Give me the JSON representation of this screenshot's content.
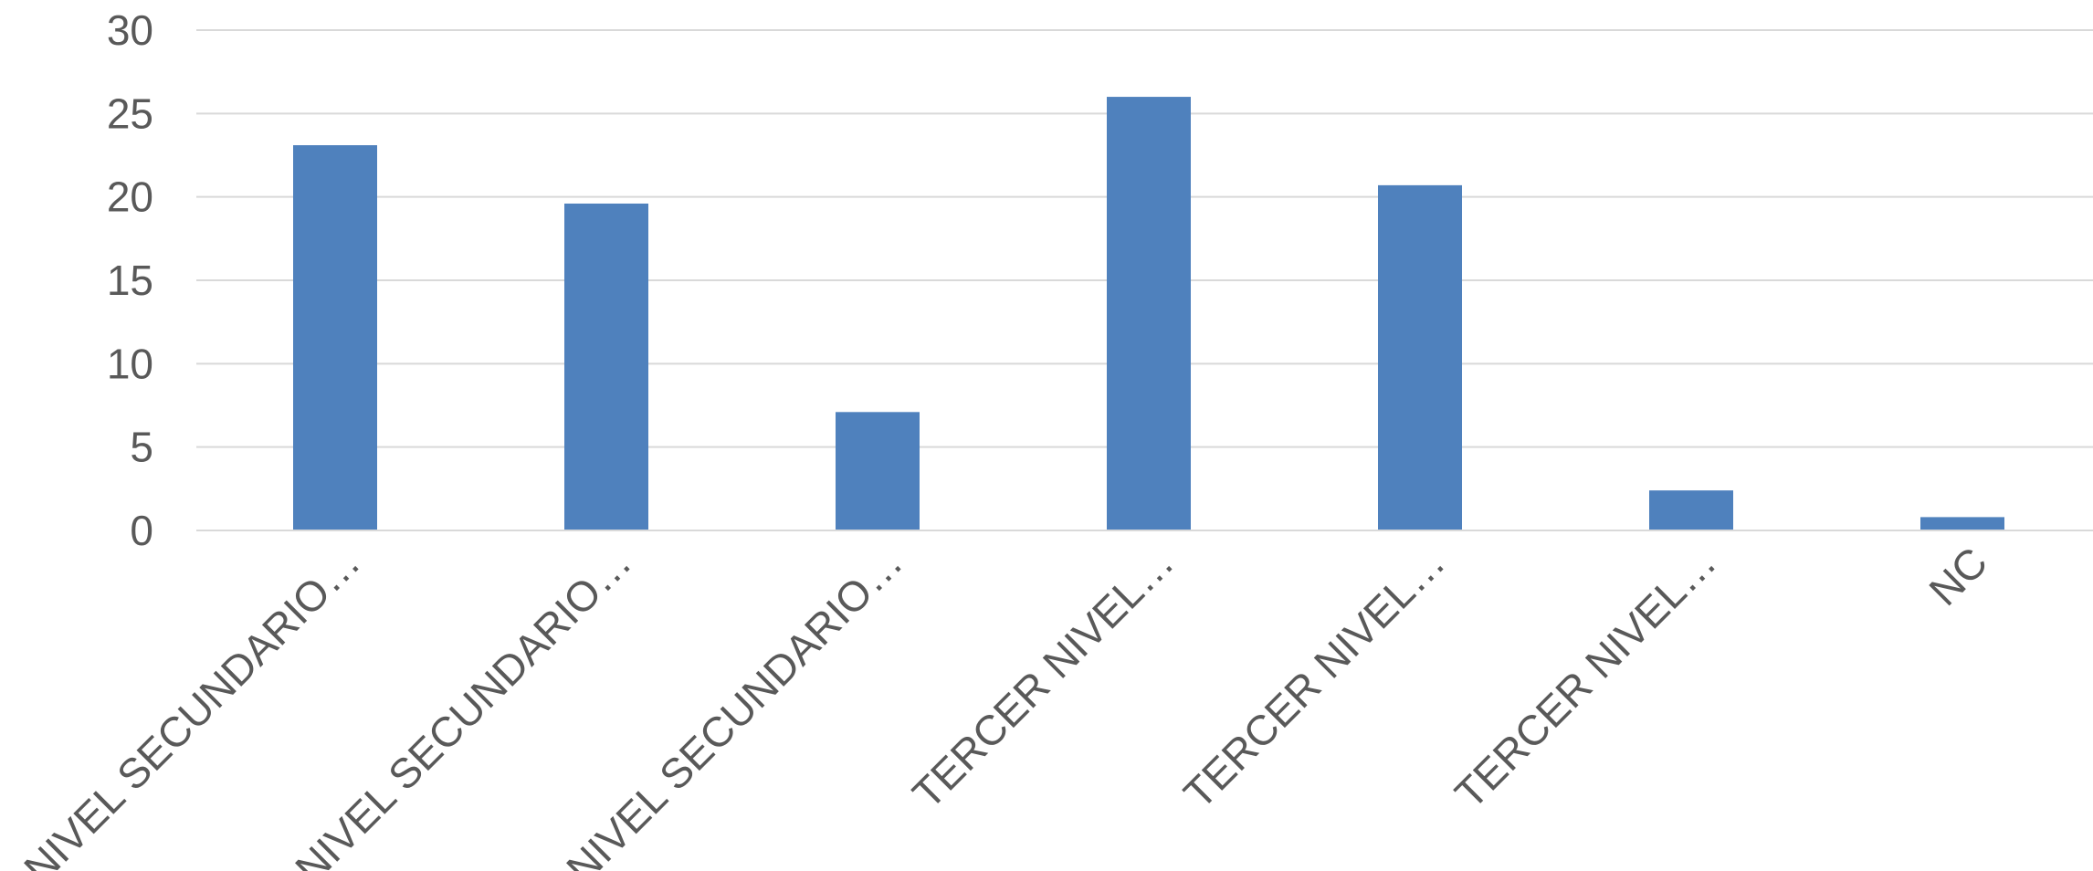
{
  "chart_data": {
    "type": "bar",
    "title": "",
    "xlabel": "",
    "ylabel": "",
    "ylim": [
      0,
      30
    ],
    "yticks": [
      0,
      5,
      10,
      15,
      20,
      25,
      30
    ],
    "grid": true,
    "legend": "none",
    "categories": [
      "NIVEL SECUNDARIO…",
      "NIVEL SECUNDARIO…",
      "NIVEL SECUNDARIO…",
      "TERCER NIVEL…",
      "TERCER NIVEL…",
      "TERCER NIVEL…",
      "NC"
    ],
    "values": [
      23.1,
      19.6,
      7.1,
      26.0,
      20.7,
      2.4,
      0.8
    ],
    "colors": {
      "bar": "#4f81bd",
      "grid": "#d9d9d9",
      "axis": "#d9d9d9",
      "text": "#595959"
    }
  }
}
